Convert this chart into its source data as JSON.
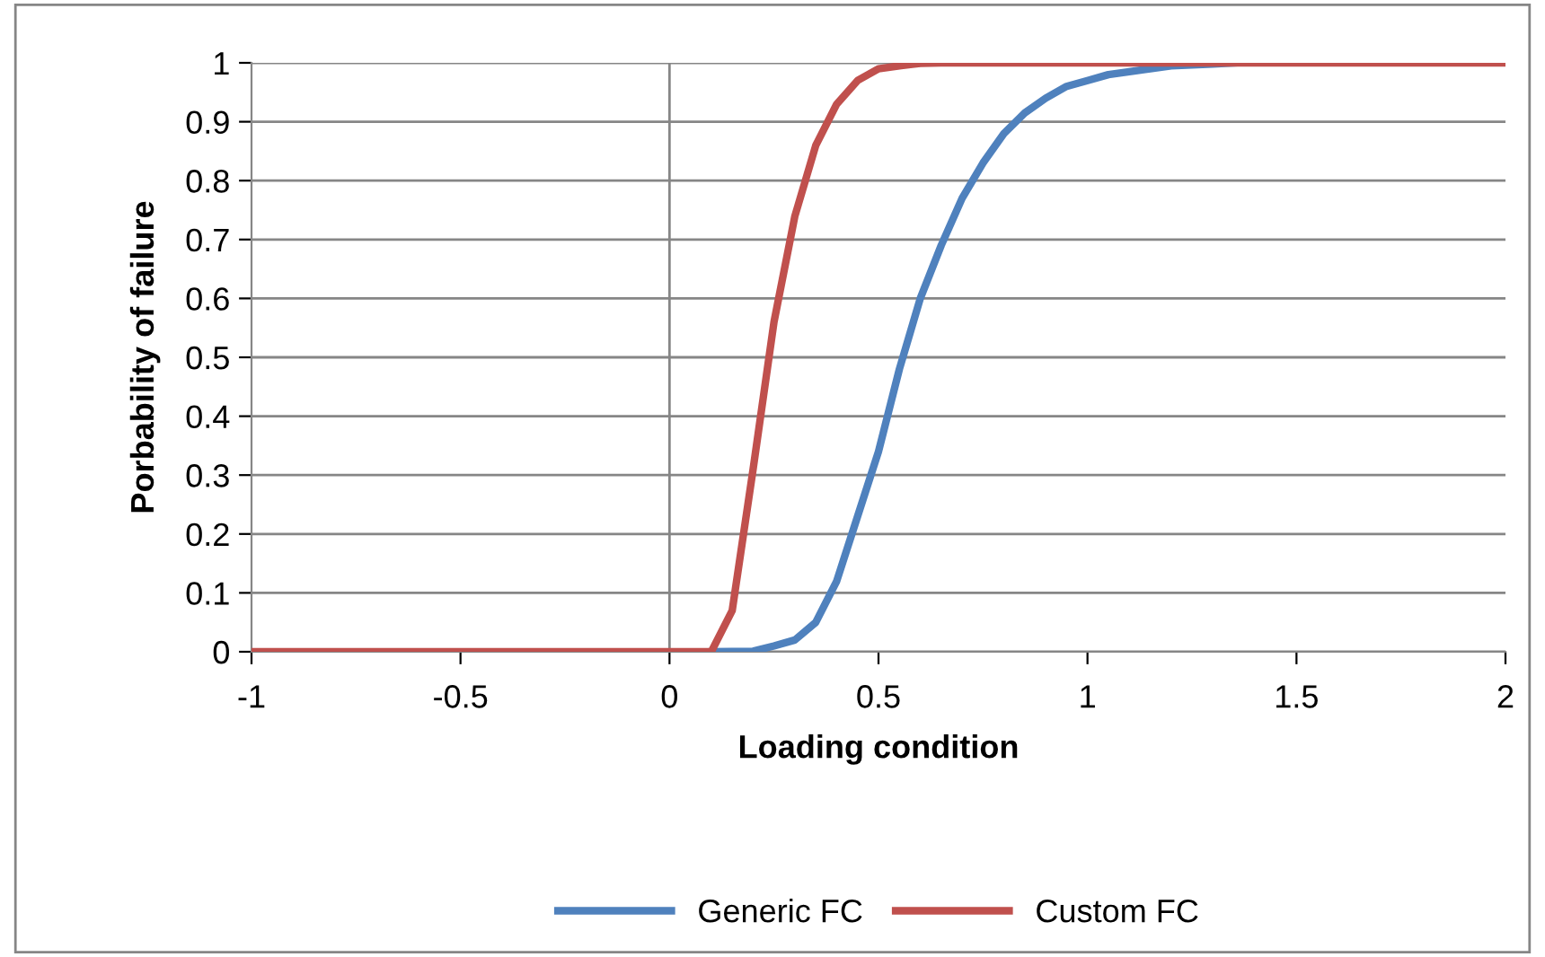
{
  "chart_data": {
    "type": "line",
    "xlabel": "Loading condition",
    "ylabel": "Porbability of failure",
    "series": [
      {
        "name": "Generic FC",
        "color": "#4f81bd",
        "x": [
          0.1,
          0.2,
          0.25,
          0.3,
          0.35,
          0.4,
          0.45,
          0.5,
          0.55,
          0.6,
          0.65,
          0.7,
          0.75,
          0.8,
          0.85,
          0.9,
          0.95,
          1,
          1.05,
          1.1,
          1.15,
          1.2,
          1.3,
          1.35
        ],
        "values": [
          0,
          0.001,
          0.01,
          0.02,
          0.05,
          0.12,
          0.23,
          0.34,
          0.48,
          0.6,
          0.69,
          0.77,
          0.83,
          0.88,
          0.915,
          0.94,
          0.96,
          0.97,
          0.98,
          0.985,
          0.99,
          0.995,
          0.998,
          1
        ]
      },
      {
        "name": "Custom FC",
        "color": "#c0504d",
        "x": [
          -1,
          -0.5,
          0,
          0.1,
          0.15,
          0.2,
          0.25,
          0.3,
          0.35,
          0.4,
          0.45,
          0.5,
          0.55,
          0.6,
          0.65,
          1,
          1.5,
          2
        ],
        "values": [
          0,
          0,
          0,
          0,
          0.07,
          0.31,
          0.56,
          0.74,
          0.86,
          0.93,
          0.97,
          0.99,
          0.995,
          0.999,
          1,
          1,
          1,
          1
        ]
      }
    ],
    "xlim": [
      -1,
      2
    ],
    "xticks": [
      -1,
      -0.5,
      0,
      0.5,
      1,
      1.5,
      2
    ],
    "ylim": [
      0,
      1
    ],
    "yticks": [
      0,
      0.1,
      0.2,
      0.3,
      0.4,
      0.5,
      0.6,
      0.7,
      0.8,
      0.9,
      1
    ],
    "ref_lines": [
      {
        "axis": "x",
        "value": 0,
        "color": "#868686"
      }
    ],
    "grid": "y",
    "legend": "bottom",
    "marker": "none",
    "line_style": "solid"
  }
}
